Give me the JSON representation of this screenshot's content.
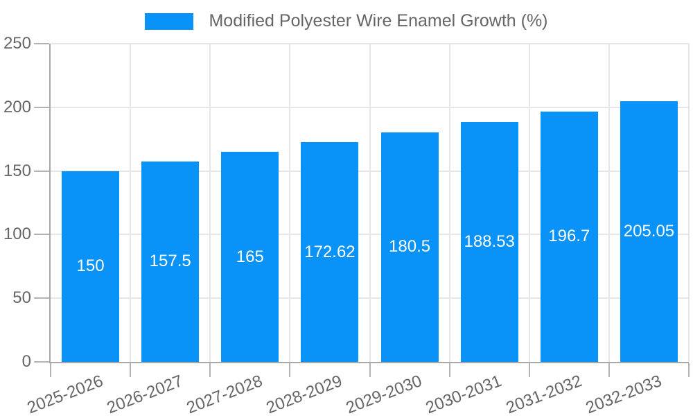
{
  "legend": {
    "label": "Modified Polyester Wire Enamel Growth (%)"
  },
  "chart_data": {
    "type": "bar",
    "title": "Modified Polyester Wire Enamel Growth (%)",
    "categories": [
      "2025-2026",
      "2026-2027",
      "2027-2028",
      "2028-2029",
      "2029-2030",
      "2030-2031",
      "2031-2032",
      "2032-2033"
    ],
    "values": [
      150,
      157.5,
      165,
      172.62,
      180.5,
      188.53,
      196.7,
      205.05
    ],
    "bar_labels": [
      "150",
      "157.5",
      "165",
      "172.62",
      "180.5",
      "188.53",
      "196.7",
      "205.05"
    ],
    "xlabel": "",
    "ylabel": "",
    "ylim": [
      0,
      250
    ],
    "yticks": [
      0,
      50,
      100,
      150,
      200,
      250
    ],
    "ytick_labels": [
      "0",
      "50",
      "100",
      "150",
      "200",
      "250"
    ],
    "grid": true,
    "legend_position": "top",
    "colors": {
      "bar": "#0992f7",
      "bar_label_text": "#ffffff",
      "axis_text": "#666666",
      "gridline": "#e6e6e6",
      "axis_line": "#a8a8a8",
      "tick_mark": "#b3b3b3"
    }
  }
}
